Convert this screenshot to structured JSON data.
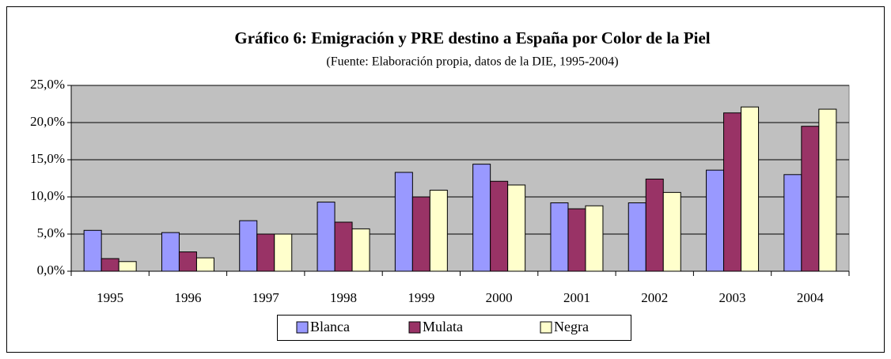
{
  "chart_data": {
    "type": "bar",
    "title": "Gráfico 6: Emigración y PRE destino a España por Color de la Piel",
    "subtitle": "(Fuente: Elaboración propia, datos de la DIE, 1995-2004)",
    "categories": [
      "1995",
      "1996",
      "1997",
      "1998",
      "1999",
      "2000",
      "2001",
      "2002",
      "2003",
      "2004"
    ],
    "series": [
      {
        "name": "Blanca",
        "color": "#9999ff",
        "values": [
          5.5,
          5.2,
          6.8,
          9.3,
          13.3,
          14.4,
          9.2,
          9.2,
          13.6,
          13.0
        ]
      },
      {
        "name": "Mulata",
        "color": "#993366",
        "values": [
          1.7,
          2.6,
          5.0,
          6.6,
          10.0,
          12.1,
          8.4,
          12.4,
          21.3,
          19.5
        ]
      },
      {
        "name": "Negra",
        "color": "#ffffcc",
        "values": [
          1.3,
          1.8,
          5.0,
          5.7,
          10.9,
          11.6,
          8.8,
          10.6,
          22.1,
          21.8
        ]
      }
    ],
    "ylim": [
      0,
      25
    ],
    "yticks": [
      {
        "value": 0,
        "label": "0,0%"
      },
      {
        "value": 5,
        "label": "5,0%"
      },
      {
        "value": 10,
        "label": "10,0%"
      },
      {
        "value": 15,
        "label": "15,0%"
      },
      {
        "value": 20,
        "label": "20,0%"
      },
      {
        "value": 25,
        "label": "25,0%"
      }
    ],
    "grid": true,
    "legend": "bottom"
  }
}
